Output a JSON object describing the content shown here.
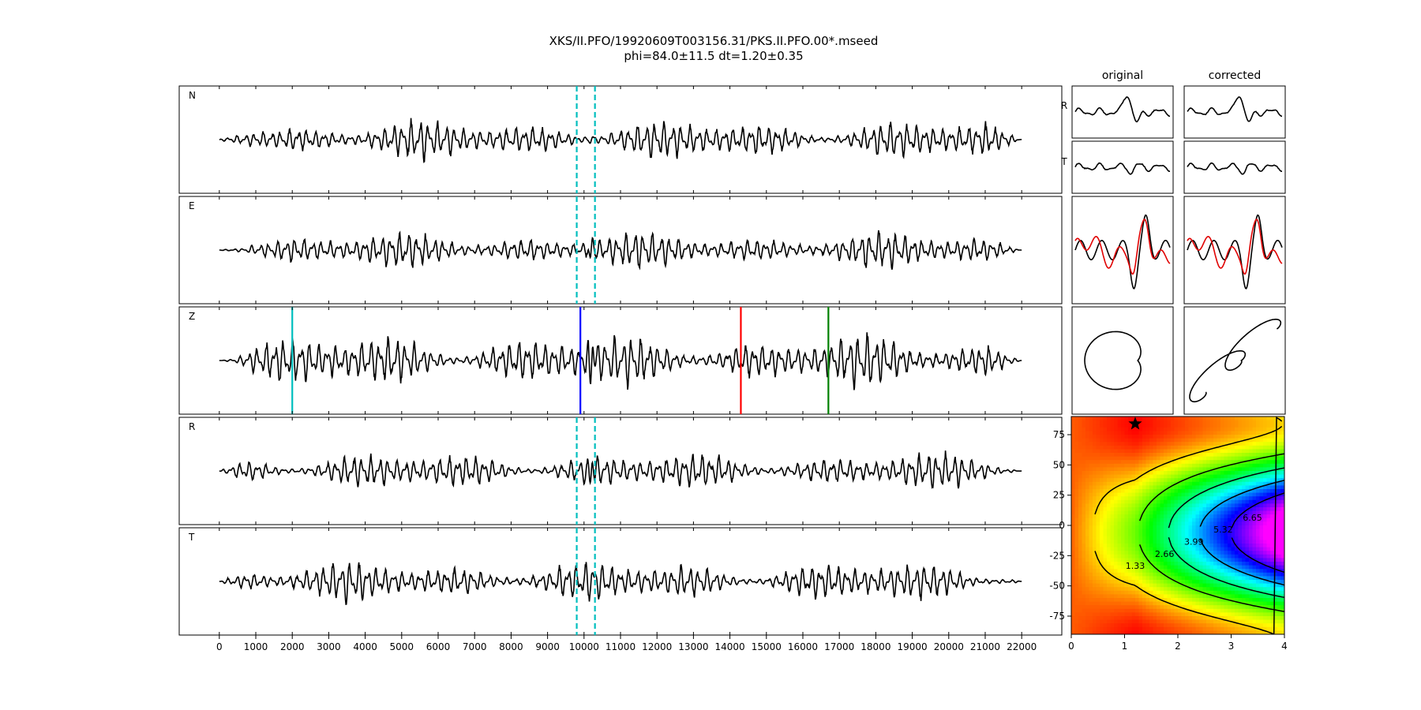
{
  "figure": {
    "title_line1": "XKS/II.PFO/19920609T003156.31/PKS.II.PFO.00*.mseed",
    "title_line2": "phi=84.0±11.5 dt=1.20±0.35"
  },
  "chart_data": [
    {
      "type": "line",
      "name": "traces",
      "xlim": [
        -1100,
        23100
      ],
      "xticks": [
        0,
        1000,
        2000,
        3000,
        4000,
        5000,
        6000,
        7000,
        8000,
        9000,
        10000,
        11000,
        12000,
        13000,
        14000,
        15000,
        16000,
        17000,
        18000,
        19000,
        20000,
        21000,
        22000
      ],
      "xtick_labels": [
        "0",
        "1000",
        "2000",
        "3000",
        "4000",
        "5000",
        "6000",
        "7000",
        "8000",
        "9000",
        "10000",
        "11000",
        "12000",
        "13000",
        "14000",
        "15000",
        "16000",
        "17000",
        "18000",
        "19000",
        "20000",
        "21000",
        "22000"
      ],
      "trace_range": [
        0,
        22000
      ],
      "panels": [
        {
          "label": "N",
          "window": [
            9800,
            10300
          ],
          "seed": 3,
          "amp": 0.45,
          "spike": 0.1
        },
        {
          "label": "E",
          "window": [
            9800,
            10300
          ],
          "seed": 7,
          "amp": 0.42,
          "spike": 0.38
        },
        {
          "label": "Z",
          "markers": [
            {
              "x": 2000,
              "color": "#00bfbf"
            },
            {
              "x": 9900,
              "color": "#0000ff"
            },
            {
              "x": 14300,
              "color": "#ff0000"
            },
            {
              "x": 16700,
              "color": "#008000"
            }
          ],
          "seed": 11,
          "amp": 0.6,
          "spike": 0.45
        },
        {
          "label": "R",
          "window": [
            9800,
            10300
          ],
          "seed": 5,
          "amp": 0.42,
          "spike": 0.38
        },
        {
          "label": "T",
          "window": [
            9800,
            10300
          ],
          "seed": 9,
          "amp": 0.46,
          "spike": 0.1
        }
      ],
      "window_color": "#00bfbf"
    },
    {
      "type": "line",
      "name": "particle-motion-columns",
      "columns": [
        {
          "title": "original",
          "row_labels": [
            "R",
            "T"
          ]
        },
        {
          "title": "corrected",
          "row_labels": []
        }
      ],
      "overlay_colors": [
        "#000000",
        "#e00000"
      ]
    },
    {
      "type": "heatmap",
      "name": "error-surface",
      "xlim": [
        0,
        4
      ],
      "ylim": [
        -90,
        90
      ],
      "xticks": [
        0,
        1,
        2,
        3,
        4
      ],
      "yticks": [
        -75,
        -50,
        -25,
        0,
        25,
        50,
        75
      ],
      "contour_levels": [
        "1.33",
        "2.66",
        "3.99",
        "5.32",
        "6.65"
      ],
      "best": {
        "dt": 1.2,
        "phi": 84.0
      },
      "colormap": "gist_rainbow"
    }
  ]
}
